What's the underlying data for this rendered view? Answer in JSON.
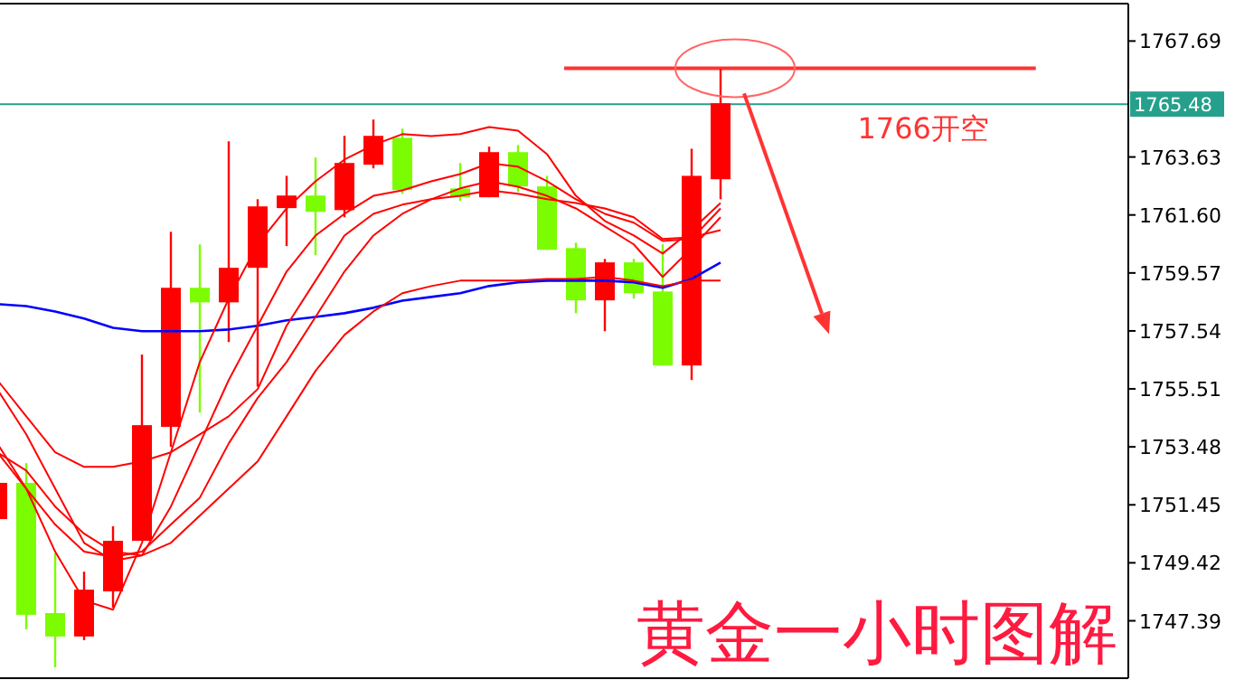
{
  "chart_data": {
    "type": "candlestick",
    "categories": [
      null,
      null,
      null,
      null,
      null,
      null,
      null,
      null,
      null,
      null,
      null,
      null,
      null,
      null,
      null,
      null,
      null,
      null,
      null,
      null,
      null,
      null,
      null,
      null,
      null,
      null
    ],
    "ohlc": [
      [
        1750.95,
        1752.22,
        1750.95,
        1752.22
      ],
      [
        1752.22,
        1752.91,
        1747.09,
        1747.6
      ],
      [
        1747.66,
        1749.75,
        1745.76,
        1746.84
      ],
      [
        1746.84,
        1749.11,
        1746.71,
        1748.48
      ],
      [
        1748.42,
        1750.7,
        1747.85,
        1750.19
      ],
      [
        1750.19,
        1756.71,
        1750.19,
        1754.24
      ],
      [
        1754.18,
        1761.01,
        1753.48,
        1759.05
      ],
      [
        1759.05,
        1760.57,
        1754.68,
        1758.54
      ],
      [
        1758.54,
        1764.18,
        1757.15,
        1759.75
      ],
      [
        1759.75,
        1762.15,
        1755.59,
        1761.9
      ],
      [
        1761.84,
        1762.97,
        1760.51,
        1762.28
      ],
      [
        1762.28,
        1763.61,
        1760.19,
        1761.71
      ],
      [
        1761.77,
        1764.37,
        1761.52,
        1763.42
      ],
      [
        1763.36,
        1764.94,
        1763.23,
        1764.37
      ],
      [
        1764.3,
        1764.62,
        1762.34,
        1762.47
      ],
      null,
      [
        1762.53,
        1763.42,
        1762.09,
        1762.22
      ],
      [
        1762.22,
        1763.99,
        1762.22,
        1763.8
      ],
      [
        1763.8,
        1764.05,
        1762.41,
        1762.6
      ],
      [
        1762.6,
        1762.97,
        1760.38,
        1760.38
      ],
      [
        1760.44,
        1760.63,
        1758.16,
        1758.61
      ],
      [
        1758.61,
        1760.06,
        1757.53,
        1759.94
      ],
      [
        1759.94,
        1760.06,
        1758.67,
        1758.86
      ],
      [
        1758.92,
        1760.57,
        1756.33,
        1756.33
      ],
      [
        1756.33,
        1763.92,
        1755.82,
        1762.97
      ],
      [
        1762.85,
        1766.71,
        1762.15,
        1765.51
      ]
    ],
    "colors": [
      "#ff0000",
      "#7cfc00",
      "#7cfc00",
      "#ff0000",
      "#ff0000",
      "#ff0000",
      "#ff0000",
      "#7cfc00",
      "#ff0000",
      "#ff0000",
      "#ff0000",
      "#7cfc00",
      "#ff0000",
      "#ff0000",
      "#7cfc00",
      null,
      "#7cfc00",
      "#ff0000",
      "#7cfc00",
      "#7cfc00",
      "#7cfc00",
      "#ff0000",
      "#7cfc00",
      "#7cfc00",
      "#ff0000",
      "#ff0000"
    ],
    "series": [
      {
        "type": "line",
        "color": "#0000ff",
        "values": [
          1758.48,
          1758.41,
          1758.22,
          1757.97,
          1757.65,
          1757.53,
          1757.53,
          1757.53,
          1757.59,
          1757.72,
          1757.91,
          1758.03,
          1758.16,
          1758.35,
          1758.6,
          1758.73,
          1758.86,
          1759.11,
          1759.24,
          1759.3,
          1759.3,
          1759.3,
          1759.24,
          1759.05,
          1759.36,
          1759.93
        ]
      },
      {
        "type": "line",
        "color": "#ff0000",
        "values": [
          1753.6,
          1752.02,
          1749.81,
          1748.1,
          1747.78,
          1750.12,
          1753.29,
          1756.45,
          1758.67,
          1760.57,
          1761.83,
          1762.78,
          1763.54,
          1764.05,
          1764.43,
          1764.36,
          1764.43,
          1764.68,
          1764.55,
          1763.73,
          1762.27,
          1761.39,
          1760.88,
          1760.25,
          1761.07,
          1762.02
        ]
      },
      {
        "type": "line",
        "color": "#ff0000",
        "values": [
          1755.5,
          1753.92,
          1752.02,
          1750.12,
          1749.49,
          1749.68,
          1751.39,
          1753.6,
          1755.82,
          1757.72,
          1759.62,
          1760.88,
          1761.64,
          1762.27,
          1762.46,
          1762.78,
          1763.03,
          1763.41,
          1763.29,
          1762.78,
          1762.15,
          1761.64,
          1761.33,
          1760.69,
          1760.76,
          1761.83
        ]
      },
      {
        "type": "line",
        "color": "#ff0000",
        "values": [
          1755.82,
          1754.55,
          1753.29,
          1752.78,
          1752.78,
          1752.97,
          1753.29,
          1753.92,
          1754.55,
          1755.5,
          1757.72,
          1759.3,
          1760.88,
          1761.64,
          1761.96,
          1762.15,
          1762.27,
          1762.46,
          1762.34,
          1762.15,
          1762.02,
          1761.83,
          1761.52,
          1760.76,
          1760.82,
          1761.07
        ]
      },
      {
        "type": "line",
        "color": "#ff0000",
        "values": [
          1753.29,
          1752.02,
          1750.76,
          1749.81,
          1749.62,
          1749.81,
          1750.76,
          1751.7,
          1753.6,
          1755.19,
          1756.45,
          1758.03,
          1759.62,
          1760.88,
          1761.64,
          1762.15,
          1762.53,
          1762.78,
          1762.59,
          1762.27,
          1761.83,
          1761.2,
          1760.57,
          1759.43,
          1760.44,
          1761.52
        ]
      },
      {
        "type": "line",
        "color": "#ff0000",
        "values": [
          1753.29,
          1752.65,
          1751.39,
          1750.44,
          1749.81,
          1749.68,
          1750.12,
          1751.07,
          1752.02,
          1752.97,
          1754.55,
          1756.14,
          1757.4,
          1758.22,
          1758.86,
          1759.11,
          1759.3,
          1759.3,
          1759.3,
          1759.36,
          1759.36,
          1759.43,
          1759.3,
          1759.11,
          1759.3,
          1759.3
        ]
      }
    ],
    "ylim": [
      1745.38,
      1769.0
    ],
    "yticks": [
      1767.69,
      1763.63,
      {
        "value": 1761.6,
        "label": "1761.60"
      },
      1759.57,
      1757.54,
      1755.51,
      1753.48,
      1751.45,
      1749.42,
      1747.39
    ],
    "ref_lines": [
      {
        "axis": "y",
        "value": 1765.48,
        "label": "1765.48",
        "color": "#26a08c"
      },
      {
        "axis": "y",
        "value": 1766.74,
        "label": "1766开空",
        "color": "#ff3333"
      }
    ],
    "annotations": [
      "黄金一小时图解"
    ],
    "tick_labels": "y",
    "grid": false,
    "line_style": "solid"
  }
}
